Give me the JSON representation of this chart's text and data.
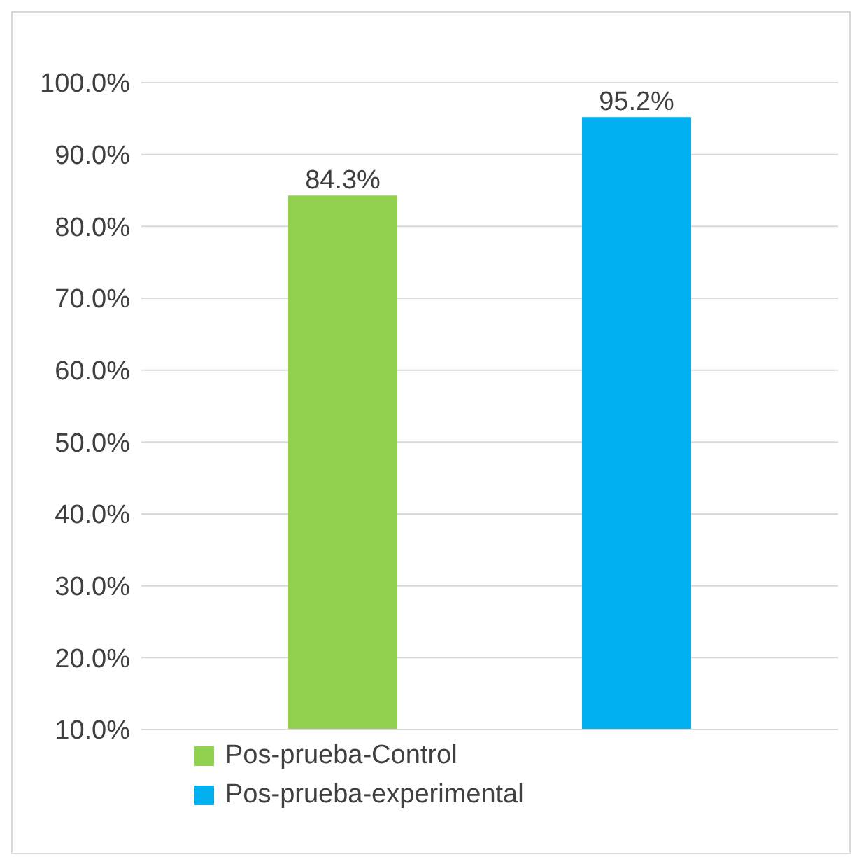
{
  "chart_data": {
    "type": "bar",
    "categories": [
      null
    ],
    "series": [
      {
        "name": "Pos-prueba-Control",
        "color": "#92d050",
        "values": [
          84.3
        ],
        "value_labels": [
          "84.3%"
        ]
      },
      {
        "name": "Pos-prueba-experimental",
        "color": "#00b0f0",
        "values": [
          95.2
        ],
        "value_labels": [
          "95.2%"
        ]
      }
    ],
    "ylim": [
      10,
      100
    ],
    "yticks": [
      {
        "value": 10,
        "label": "10.0%"
      },
      {
        "value": 20,
        "label": "20.0%"
      },
      {
        "value": 30,
        "label": "30.0%"
      },
      {
        "value": 40,
        "label": "40.0%"
      },
      {
        "value": 50,
        "label": "50.0%"
      },
      {
        "value": 60,
        "label": "60.0%"
      },
      {
        "value": 70,
        "label": "70.0%"
      },
      {
        "value": 80,
        "label": "80.0%"
      },
      {
        "value": 90,
        "label": "90.0%"
      },
      {
        "value": 100,
        "label": "100.0%"
      }
    ],
    "grid": "y",
    "legend": "bottom left"
  }
}
